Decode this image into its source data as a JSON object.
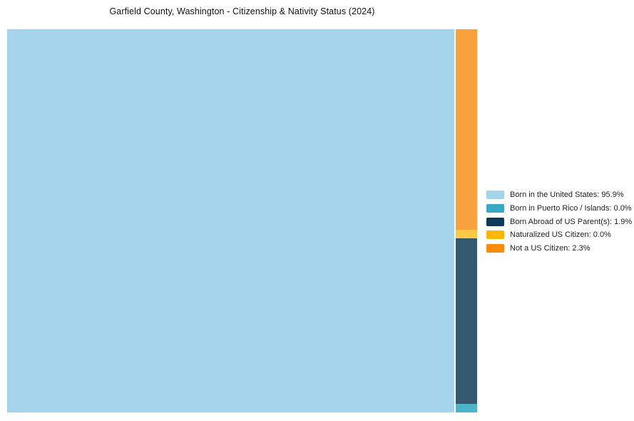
{
  "title": "Garfield County, Washington - Citizenship & Nativity Status (2024)",
  "colors": {
    "background": "#ffffff",
    "title_text": "#111111",
    "legend_text": "#1f1f1f"
  },
  "chart_data": {
    "type": "treemap",
    "title": "Garfield County, Washington - Citizenship & Nativity Status (2024)",
    "units": "%",
    "legend_position": "right",
    "categories": [
      "Born in the United States",
      "Born in Puerto Rico / Islands",
      "Born Abroad of US Parent(s)",
      "Naturalized US Citizen",
      "Not a US Citizen"
    ],
    "values": [
      95.9,
      0.0,
      1.9,
      0.0,
      2.3
    ],
    "segments": [
      {
        "label": "Born in the United States",
        "value": 95.9,
        "legend_label": "Born in the United States: 95.9%",
        "fill": "#a6d4ec",
        "legend_fill": "#a5d3e8"
      },
      {
        "label": "Born in Puerto Rico / Islands",
        "value": 0.0,
        "legend_label": "Born in Puerto Rico / Islands: 0.0%",
        "fill": "#4db3c8",
        "legend_fill": "#39a8c5"
      },
      {
        "label": "Born Abroad of US Parent(s)",
        "value": 1.9,
        "legend_label": "Born Abroad of US Parent(s): 1.9%",
        "fill": "#35596e",
        "legend_fill": "#0e3a55"
      },
      {
        "label": "Naturalized US Citizen",
        "value": 0.0,
        "legend_label": "Naturalized US Citizen: 0.0%",
        "fill": "#fdc845",
        "legend_fill": "#ffb605"
      },
      {
        "label": "Not a US Citizen",
        "value": 2.3,
        "legend_label": "Not a US Citizen: 2.3%",
        "fill": "#f9a13c",
        "legend_fill": "#fa8b0e"
      }
    ]
  }
}
